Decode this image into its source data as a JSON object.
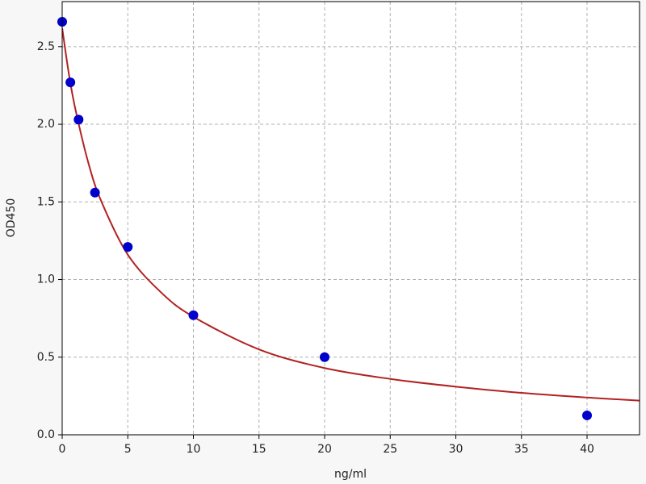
{
  "chart_data": {
    "type": "scatter",
    "xlabel": "ng/ml",
    "ylabel": "OD450",
    "xlim": [
      0,
      44
    ],
    "ylim": [
      0,
      2.79
    ],
    "xticks": [
      0,
      5,
      10,
      15,
      20,
      25,
      30,
      35,
      40
    ],
    "yticks": [
      {
        "value": 0,
        "label": "0.0"
      },
      {
        "value": 0.5,
        "label": "0.5"
      },
      {
        "value": 1,
        "label": "1.0"
      },
      {
        "value": 1.5,
        "label": "1.5"
      },
      {
        "value": 2,
        "label": "2.0"
      },
      {
        "value": 2.5,
        "label": "2.5"
      }
    ],
    "grid": true,
    "series": [
      {
        "kind": "points",
        "color": "#0000cc",
        "x": [
          0,
          0.625,
          1.25,
          2.5,
          5,
          10,
          20,
          40
        ],
        "values": [
          2.66,
          2.27,
          2.03,
          1.56,
          1.21,
          0.77,
          0.5,
          0.125
        ]
      },
      {
        "kind": "curve",
        "color": "#b22222",
        "x": [
          0,
          0.5,
          1,
          2,
          3,
          5,
          7.5,
          10,
          15,
          20,
          25,
          30,
          35,
          40,
          44
        ],
        "values": [
          2.62,
          2.33,
          2.1,
          1.75,
          1.5,
          1.16,
          0.92,
          0.76,
          0.55,
          0.43,
          0.36,
          0.31,
          0.27,
          0.24,
          0.22
        ]
      }
    ]
  }
}
